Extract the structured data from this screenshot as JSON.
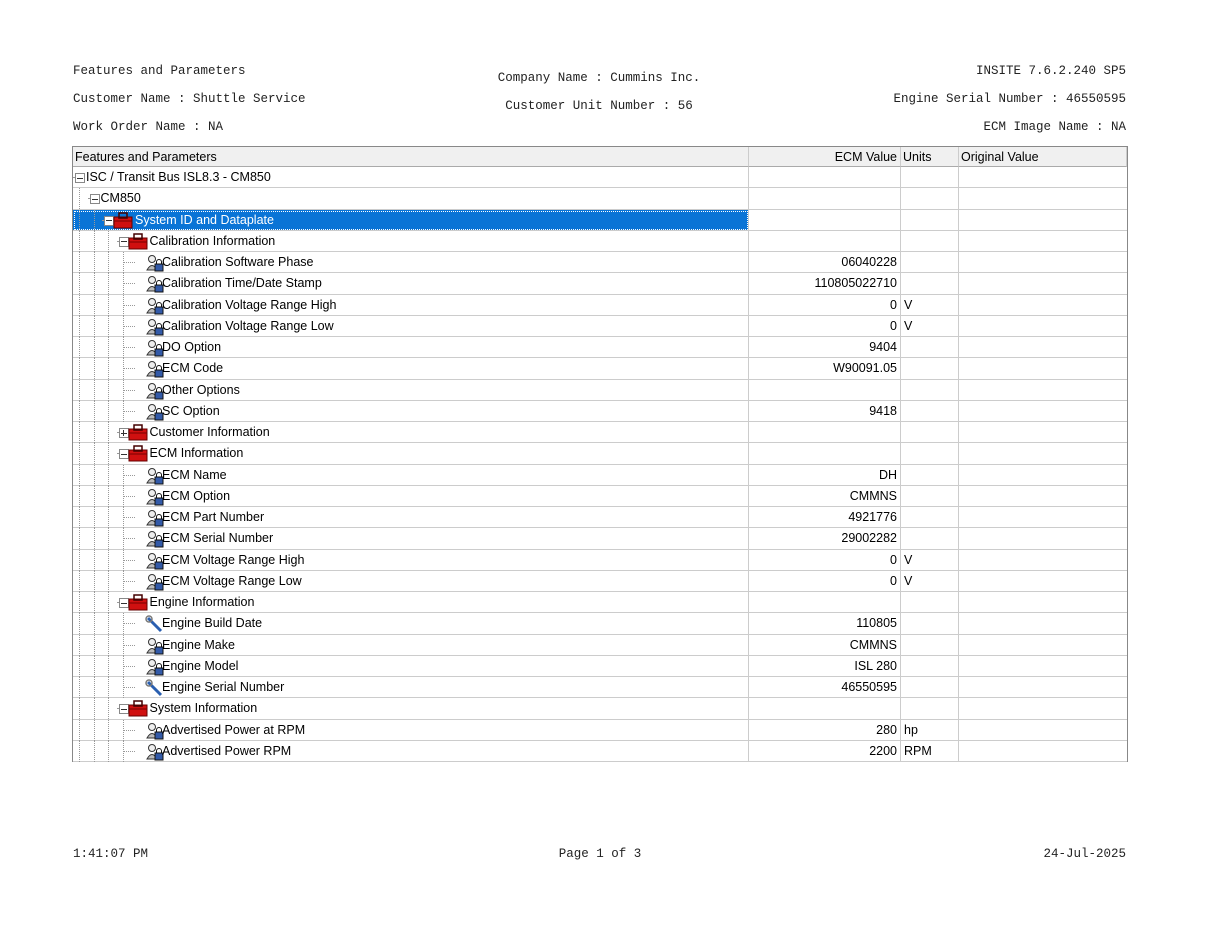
{
  "header": {
    "left": [
      "Features and Parameters",
      "Customer Name : Shuttle Service",
      "Work Order Name : NA"
    ],
    "center": [
      "Company Name : Cummins Inc.",
      "Customer Unit Number : 56"
    ],
    "right": [
      "INSITE 7.6.2.240 SP5",
      "Engine Serial Number : 46550595",
      "ECM Image Name : NA"
    ]
  },
  "table": {
    "columns": [
      "Features and Parameters",
      "ECM Value",
      "Units",
      "Original Value"
    ],
    "rows": [
      {
        "name": "ISC / Transit Bus ISL8.3 - CM850"
      },
      {
        "name": "CM850"
      },
      {
        "name": "System ID and Dataplate"
      },
      {
        "name": "Calibration Information"
      },
      {
        "name": "Calibration Software Phase",
        "ecm_value": "06040228"
      },
      {
        "name": "Calibration Time/Date Stamp",
        "ecm_value": "110805022710"
      },
      {
        "name": "Calibration Voltage Range High",
        "ecm_value": "0",
        "units": "V"
      },
      {
        "name": "Calibration Voltage Range Low",
        "ecm_value": "0",
        "units": "V"
      },
      {
        "name": "DO Option",
        "ecm_value": "9404"
      },
      {
        "name": "ECM Code",
        "ecm_value": "W90091.05"
      },
      {
        "name": "Other Options"
      },
      {
        "name": "SC Option",
        "ecm_value": "9418"
      },
      {
        "name": "Customer Information"
      },
      {
        "name": "ECM Information"
      },
      {
        "name": "ECM Name",
        "ecm_value": "DH"
      },
      {
        "name": "ECM Option",
        "ecm_value": "CMMNS"
      },
      {
        "name": "ECM Part Number",
        "ecm_value": "4921776"
      },
      {
        "name": "ECM Serial Number",
        "ecm_value": "29002282"
      },
      {
        "name": "ECM Voltage Range High",
        "ecm_value": "0",
        "units": "V"
      },
      {
        "name": "ECM Voltage Range Low",
        "ecm_value": "0",
        "units": "V"
      },
      {
        "name": "Engine Information"
      },
      {
        "name": "Engine Build Date",
        "ecm_value": "110805"
      },
      {
        "name": "Engine Make",
        "ecm_value": "CMMNS"
      },
      {
        "name": "Engine Model",
        "ecm_value": "ISL 280"
      },
      {
        "name": "Engine Serial Number",
        "ecm_value": "46550595"
      },
      {
        "name": "System Information"
      },
      {
        "name": "Advertised Power at RPM",
        "ecm_value": "280",
        "units": "hp"
      },
      {
        "name": "Advertised Power RPM",
        "ecm_value": "2200",
        "units": "RPM"
      }
    ]
  },
  "footer": {
    "left": "1:41:07 PM",
    "center": "Page 1 of 3",
    "right": "24-Jul-2025"
  }
}
